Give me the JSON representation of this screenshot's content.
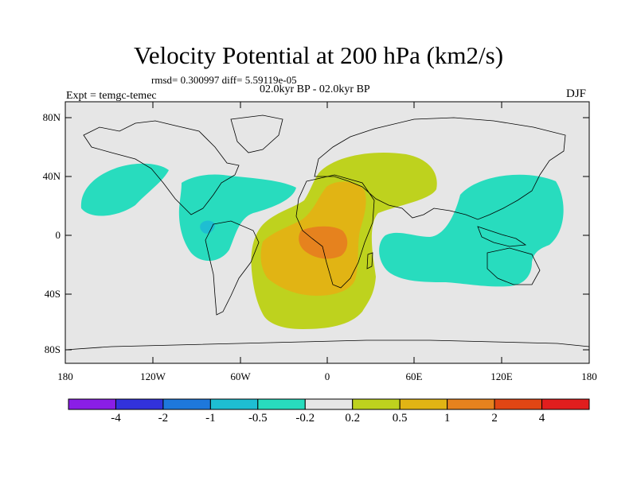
{
  "title": "Velocity Potential at 200 hPa (km2/s)",
  "stats": "rmsd= 0.300997 diff= 5.59119e-05",
  "period": "02.0kyr BP - 02.0kyr BP",
  "experiment": "Expt = temgc-temec",
  "season": "DJF",
  "lat_labels": [
    "80N",
    "40N",
    "0",
    "40S",
    "80S"
  ],
  "lon_labels": [
    "180",
    "120W",
    "60W",
    "0",
    "60E",
    "120E",
    "180"
  ],
  "colorbar": {
    "colors": [
      "#8a1ee6",
      "#3232dc",
      "#1e78dc",
      "#1ebed2",
      "#28dcbe",
      "#e6e6e6",
      "#bed21e",
      "#e1b414",
      "#e6821e",
      "#e14614",
      "#e11e1e"
    ],
    "labels": [
      "-4",
      "-2",
      "-1",
      "-0.5",
      "-0.2",
      "0.2",
      "0.5",
      "1",
      "2",
      "4"
    ]
  },
  "colors": {
    "land_outline": "#000000",
    "neutral": "#e6e6e6"
  }
}
